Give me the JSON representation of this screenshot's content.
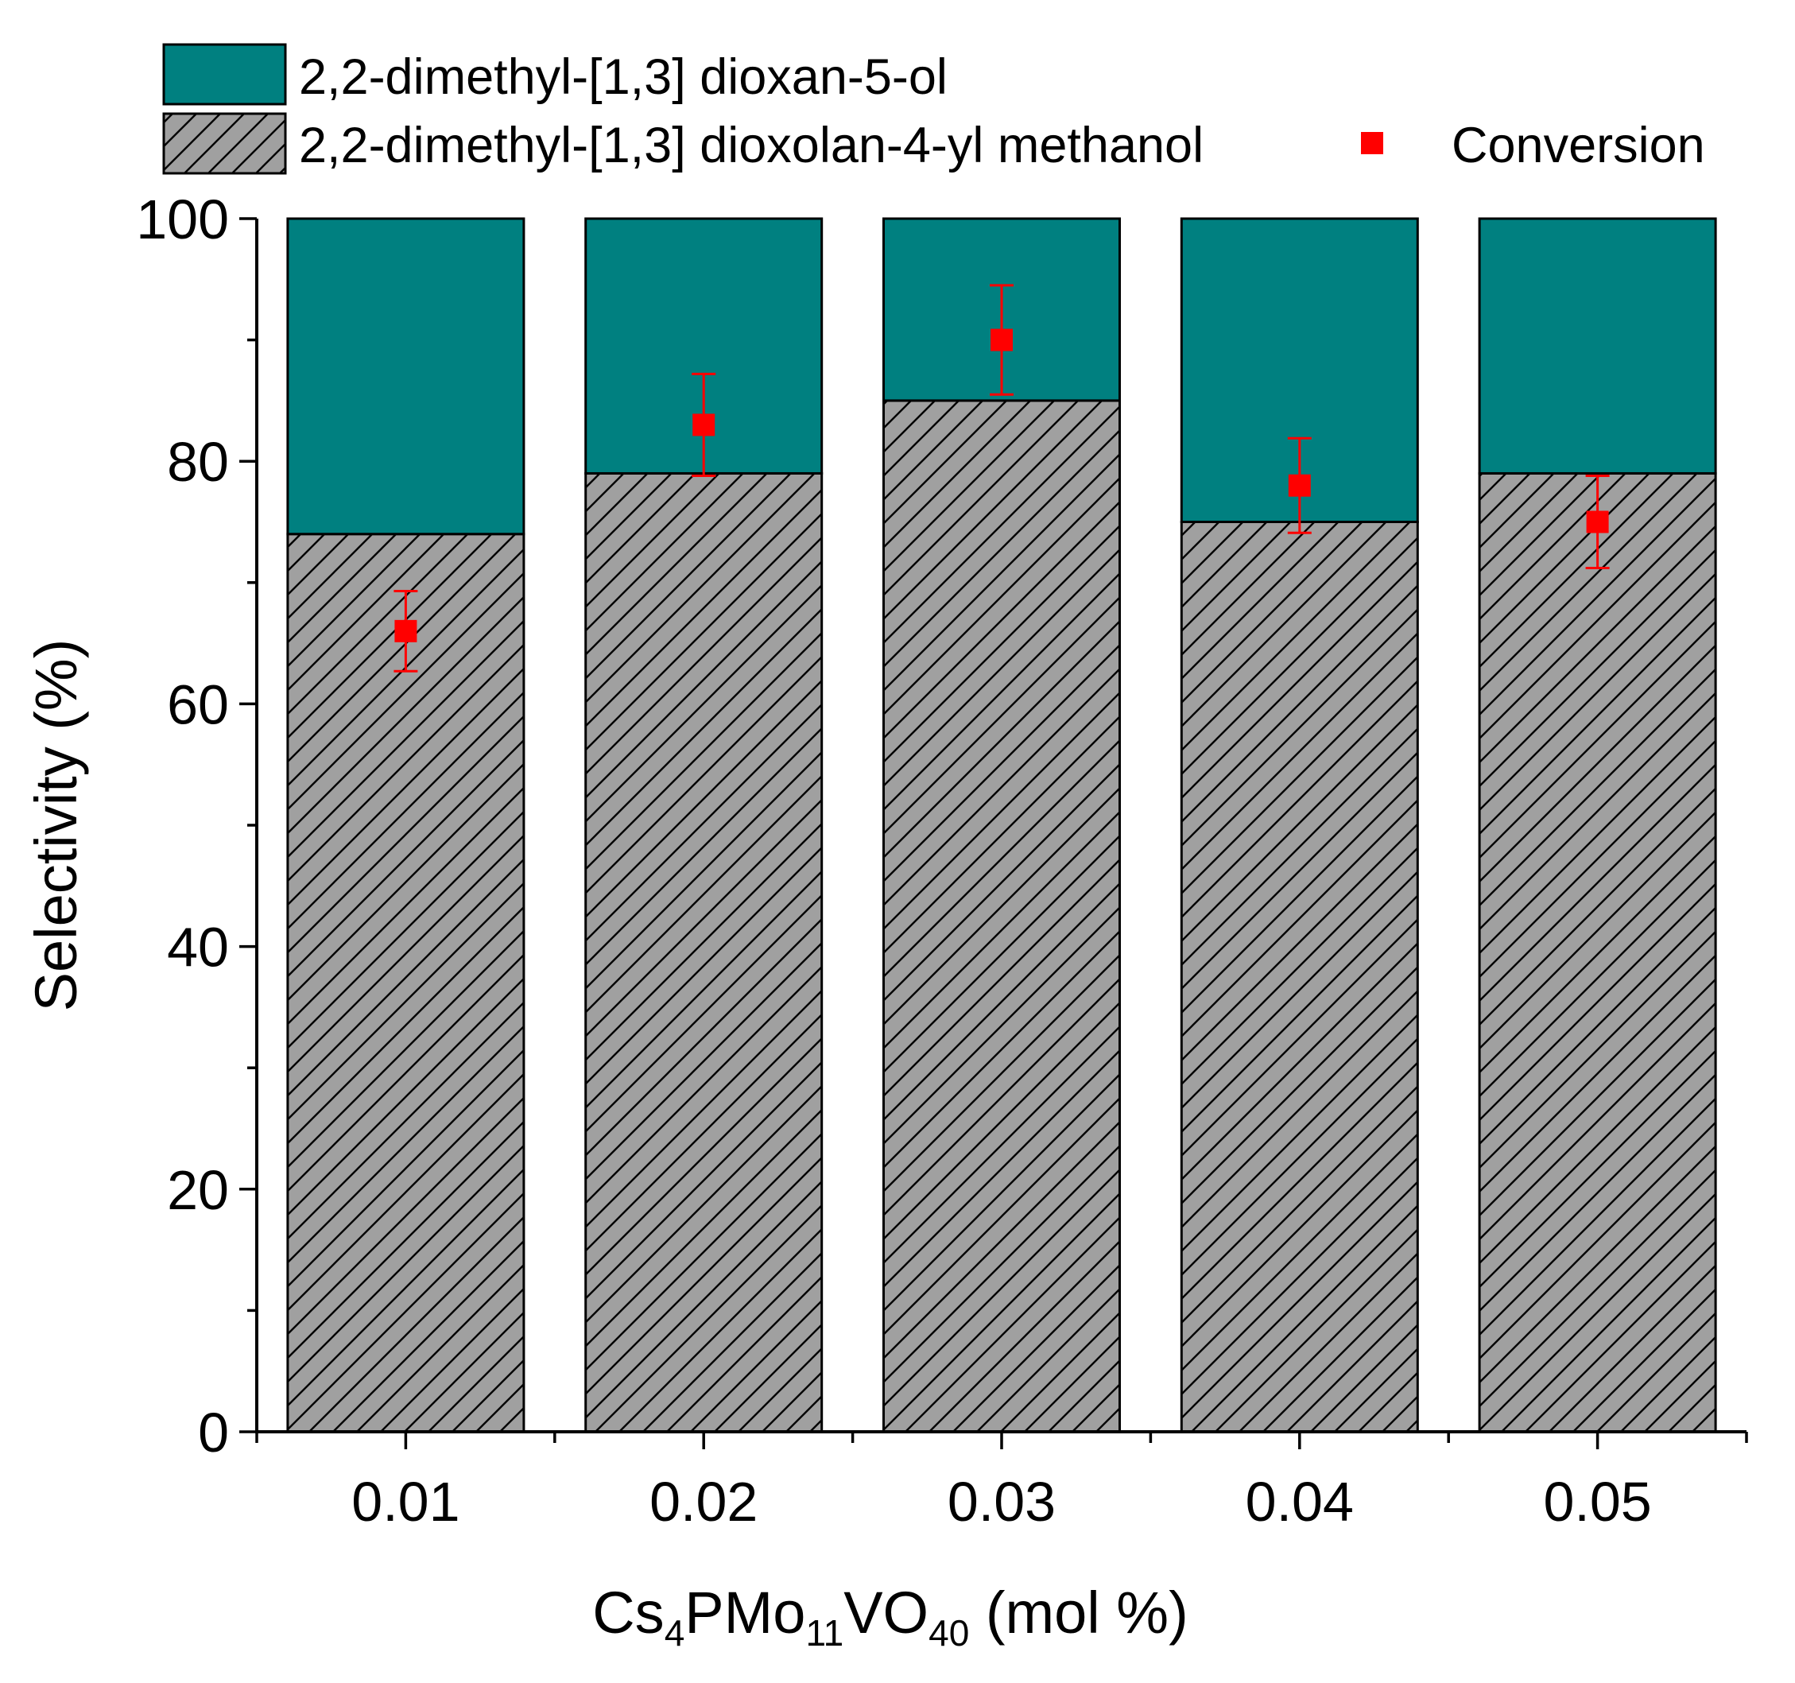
{
  "chart_data": {
    "type": "bar",
    "stacked": true,
    "categories": [
      "0.01",
      "0.02",
      "0.03",
      "0.04",
      "0.05"
    ],
    "series": [
      {
        "name": "2,2-dimethyl-[1,3] dioxolan-4-yl methanol",
        "kind": "bar",
        "fill": "#a0a0a0",
        "pattern": "diagonal-hatch",
        "values": [
          74,
          79,
          85,
          75,
          79
        ]
      },
      {
        "name": "2,2-dimethyl-[1,3] dioxan-5-ol",
        "kind": "bar",
        "fill": "#008080",
        "values": [
          26,
          21,
          15,
          25,
          21
        ]
      },
      {
        "name": "Conversion",
        "kind": "scatter",
        "color": "#ff0000",
        "marker": "square",
        "values": [
          66,
          83,
          90,
          78,
          75
        ],
        "error": [
          3.3,
          4.2,
          4.5,
          3.9,
          3.8
        ]
      }
    ],
    "xlabel": {
      "parts": [
        {
          "text": "Cs",
          "sub": false
        },
        {
          "text": "4",
          "sub": true
        },
        {
          "text": "PMo",
          "sub": false
        },
        {
          "text": "11",
          "sub": true
        },
        {
          "text": "VO",
          "sub": false
        },
        {
          "text": "40",
          "sub": true
        },
        {
          "text": " (mol %)",
          "sub": false
        }
      ]
    },
    "ylabel": "Selectivity (%)",
    "ylim": [
      0,
      100
    ],
    "yticks": [
      0,
      20,
      40,
      60,
      80,
      100
    ],
    "yminor_step": 10,
    "grid": false,
    "legend_position": "top"
  }
}
